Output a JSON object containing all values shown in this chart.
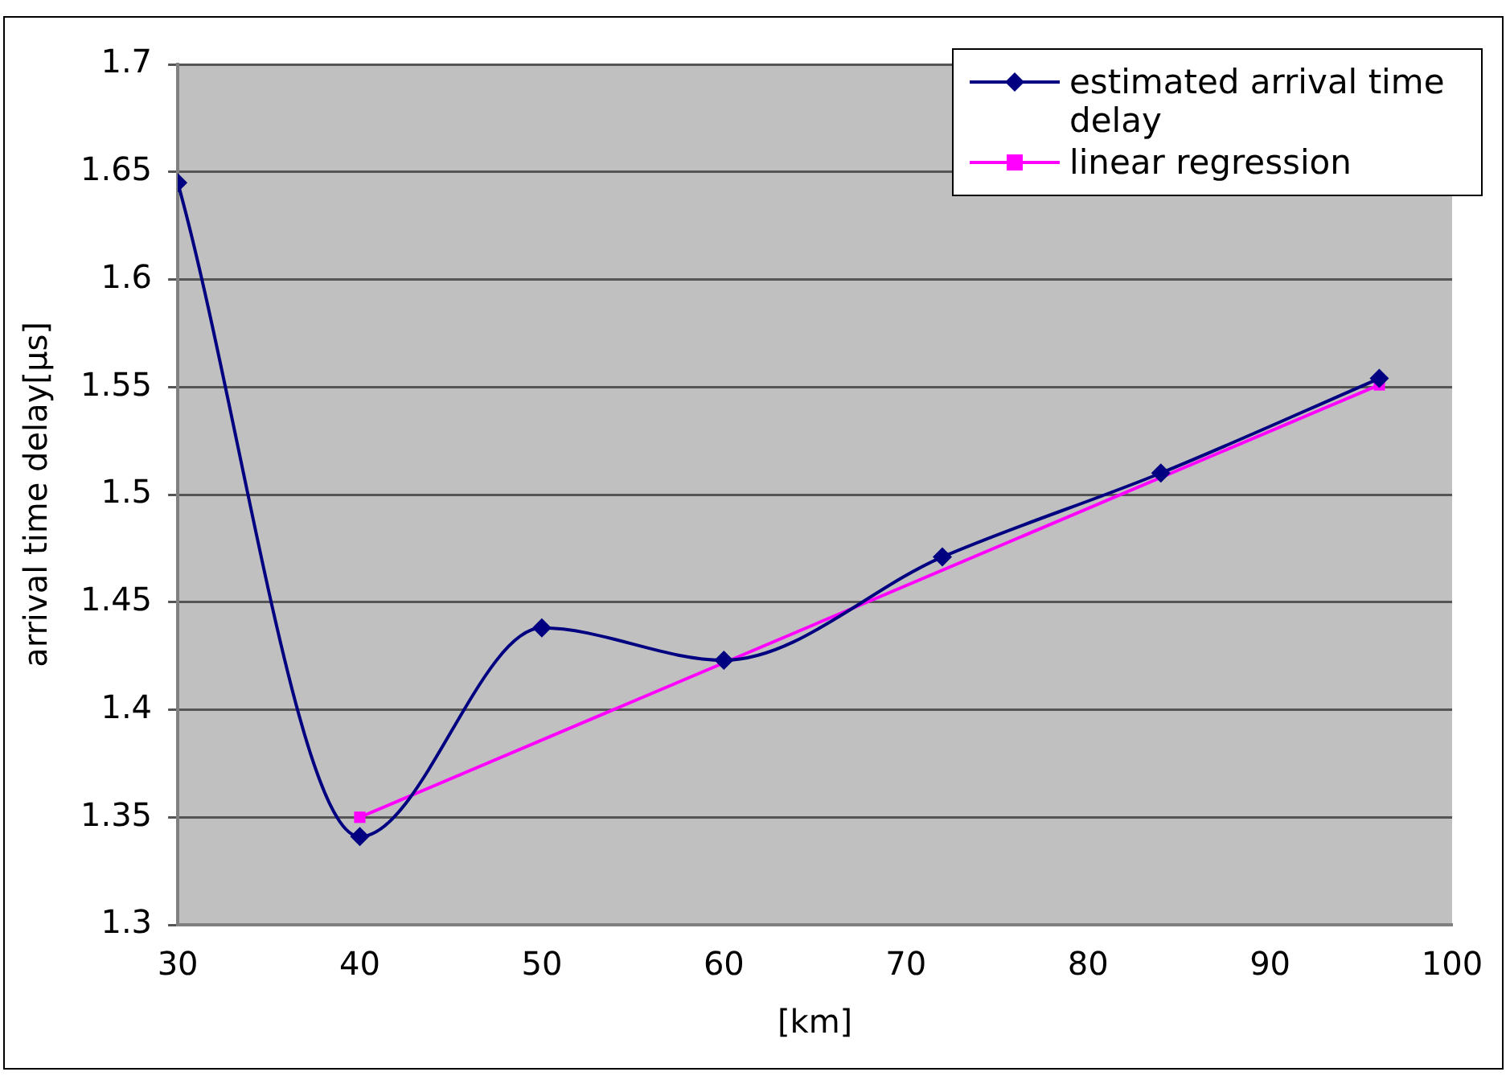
{
  "chart_data": {
    "type": "line",
    "xlabel": "[km]",
    "ylabel": "arrival time delay[μs]",
    "xlim": [
      30,
      100
    ],
    "xticks": [
      30,
      40,
      50,
      60,
      70,
      80,
      90,
      100
    ],
    "ylim": [
      1.3,
      1.7
    ],
    "yticks": [
      1.3,
      1.35,
      1.4,
      1.45,
      1.5,
      1.55,
      1.6,
      1.65,
      1.7
    ],
    "grid": "y",
    "legend": "top right",
    "series": [
      {
        "name": "estimated arrival time delay",
        "color": "#000080",
        "marker": "diamond",
        "x": [
          30,
          40,
          50,
          60,
          72,
          84,
          96
        ],
        "values": [
          1.645,
          1.341,
          1.438,
          1.423,
          1.471,
          1.51,
          1.554
        ]
      },
      {
        "name": "linear regression",
        "color": "#ff00ff",
        "marker": "square",
        "x": [
          40,
          96
        ],
        "values": [
          1.35,
          1.551
        ]
      }
    ]
  }
}
